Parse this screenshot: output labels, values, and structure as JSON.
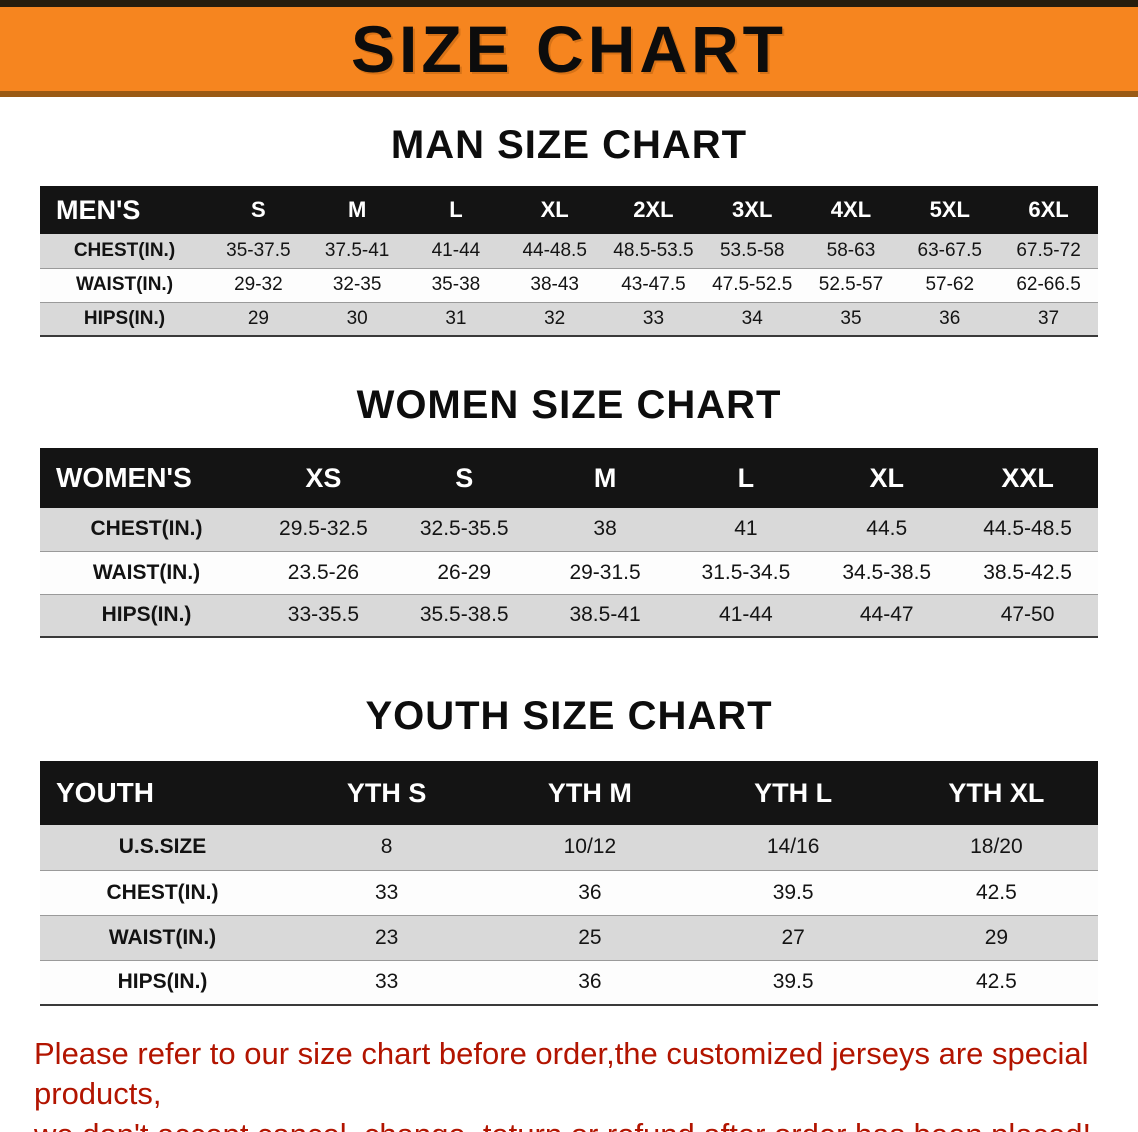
{
  "banner": {
    "title": "SIZE CHART"
  },
  "colors": {
    "banner_bg": "#f6851f",
    "table_header_bg": "#141414",
    "row_alt_bg": "#d9d9d9",
    "footer_text": "#b21400"
  },
  "sections": [
    {
      "title": "MAN SIZE CHART"
    },
    {
      "title": "WOMEN SIZE CHART"
    },
    {
      "title": "YOUTH SIZE CHART"
    }
  ],
  "chart_data": [
    {
      "type": "table",
      "title": "MAN SIZE CHART",
      "columns": [
        "MEN'S",
        "S",
        "M",
        "L",
        "XL",
        "2XL",
        "3XL",
        "4XL",
        "5XL",
        "6XL"
      ],
      "rows": [
        [
          "CHEST(IN.)",
          "35-37.5",
          "37.5-41",
          "41-44",
          "44-48.5",
          "48.5-53.5",
          "53.5-58",
          "58-63",
          "63-67.5",
          "67.5-72"
        ],
        [
          "WAIST(IN.)",
          "29-32",
          "32-35",
          "35-38",
          "38-43",
          "43-47.5",
          "47.5-52.5",
          "52.5-57",
          "57-62",
          "62-66.5"
        ],
        [
          "HIPS(IN.)",
          "29",
          "30",
          "31",
          "32",
          "33",
          "34",
          "35",
          "36",
          "37"
        ]
      ]
    },
    {
      "type": "table",
      "title": "WOMEN SIZE CHART",
      "columns": [
        "WOMEN'S",
        "XS",
        "S",
        "M",
        "L",
        "XL",
        "XXL"
      ],
      "rows": [
        [
          "CHEST(IN.)",
          "29.5-32.5",
          "32.5-35.5",
          "38",
          "41",
          "44.5",
          "44.5-48.5"
        ],
        [
          "WAIST(IN.)",
          "23.5-26",
          "26-29",
          "29-31.5",
          "31.5-34.5",
          "34.5-38.5",
          "38.5-42.5"
        ],
        [
          "HIPS(IN.)",
          "33-35.5",
          "35.5-38.5",
          "38.5-41",
          "41-44",
          "44-47",
          "47-50"
        ]
      ]
    },
    {
      "type": "table",
      "title": "YOUTH SIZE CHART",
      "columns": [
        "YOUTH",
        "YTH S",
        "YTH M",
        "YTH L",
        "YTH XL"
      ],
      "rows": [
        [
          "U.S.SIZE",
          "8",
          "10/12",
          "14/16",
          "18/20"
        ],
        [
          "CHEST(IN.)",
          "33",
          "36",
          "39.5",
          "42.5"
        ],
        [
          "WAIST(IN.)",
          "23",
          "25",
          "27",
          "29"
        ],
        [
          "HIPS(IN.)",
          "33",
          "36",
          "39.5",
          "42.5"
        ]
      ]
    }
  ],
  "footer": {
    "line1": "Please refer to our size chart before order,the customized jerseys are special products,",
    "line2": "we don't accept cancel, change, teturn or refund after order has been placed!"
  }
}
